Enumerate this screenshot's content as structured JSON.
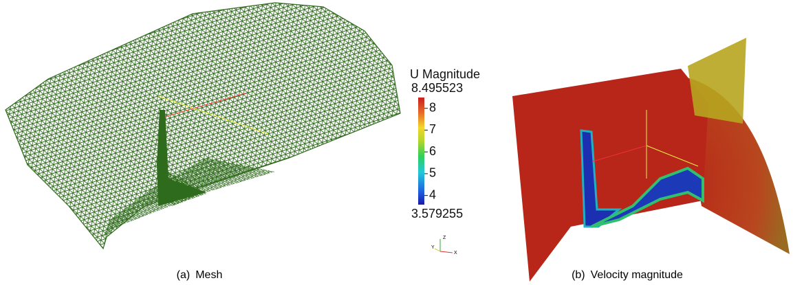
{
  "figures": [
    {
      "label": "(a)",
      "caption": "Mesh"
    },
    {
      "label": "(b)",
      "caption": "Velocity magnitude"
    }
  ],
  "colorbar": {
    "title": "U Magnitude",
    "range": [
      3.579255,
      8.495523
    ],
    "ticks": [
      4,
      5,
      6,
      7,
      8
    ]
  },
  "axes_triad": [
    "Z",
    "Y",
    "X"
  ]
}
